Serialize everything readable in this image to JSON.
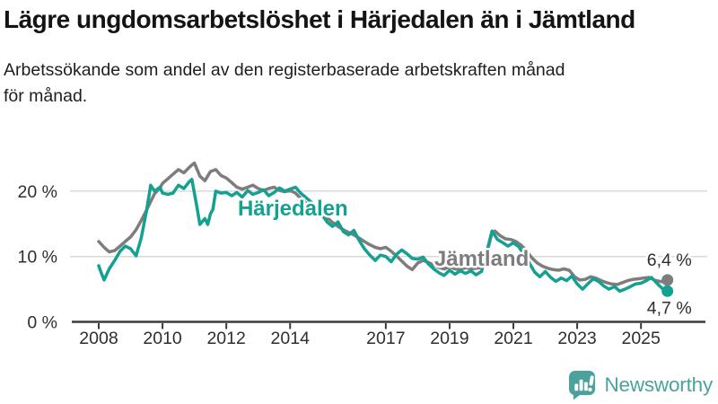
{
  "header": {
    "title": "Lägre ungdomsarbetslöshet i Härjedalen än i Jämtland",
    "subtitle": "Arbetssökande som andel av den registerbaserade arbetskraften månad för månad.",
    "subtitle_lines": [
      "Arbetssökande som andel av den registerbaserade arbetskraften månad",
      "för månad."
    ]
  },
  "footer": {
    "brand": "Newsworthy",
    "logo_icon": "bar-chart-speech-bubble"
  },
  "colors": {
    "haerjedalen": "#14A191",
    "jaemtland": "#7D7D7D",
    "grid": "#D9D9D9",
    "axis": "#3A3A3A",
    "tick_text": "#2E2E2E",
    "brand_teal": "#4BA19C",
    "background": "#FFFFFF"
  },
  "chart_data": {
    "type": "line",
    "title": "Lägre ungdomsarbetslöshet i Härjedalen än i Jämtland",
    "unit": "%",
    "grid": "horizontal",
    "legend": "inline-labels",
    "x_axis": {
      "ticks": [
        2008,
        2010,
        2012,
        2014,
        2017,
        2019,
        2021,
        2023,
        2025
      ],
      "range": [
        2007.8,
        2026.4
      ]
    },
    "y_axis": {
      "ticks": [
        {
          "value": 0,
          "label": "0 %"
        },
        {
          "value": 10,
          "label": "10 %"
        },
        {
          "value": 20,
          "label": "20 %"
        }
      ],
      "range": [
        0,
        27
      ]
    },
    "series": [
      {
        "name": "Härjedalen",
        "slug": "harjedalen",
        "color": "#14A191",
        "end_value": 4.7,
        "end_label": "4,7 %",
        "end_label_side": "below",
        "label_anchor": {
          "x": 2012.36,
          "y": 16.3
        },
        "points": [
          [
            2008.0,
            8.6
          ],
          [
            2008.08,
            7.5
          ],
          [
            2008.17,
            6.4
          ],
          [
            2008.33,
            8.1
          ],
          [
            2008.5,
            9.4
          ],
          [
            2008.67,
            10.8
          ],
          [
            2008.83,
            11.6
          ],
          [
            2009.0,
            11.2
          ],
          [
            2009.17,
            10.1
          ],
          [
            2009.33,
            12.8
          ],
          [
            2009.5,
            17.0
          ],
          [
            2009.63,
            20.9
          ],
          [
            2009.75,
            20.0
          ],
          [
            2009.92,
            20.6
          ],
          [
            2010.0,
            19.7
          ],
          [
            2010.17,
            19.5
          ],
          [
            2010.33,
            19.7
          ],
          [
            2010.5,
            20.9
          ],
          [
            2010.67,
            20.4
          ],
          [
            2010.83,
            21.4
          ],
          [
            2010.92,
            21.8
          ],
          [
            2011.08,
            17.5
          ],
          [
            2011.17,
            14.9
          ],
          [
            2011.33,
            15.8
          ],
          [
            2011.42,
            14.9
          ],
          [
            2011.5,
            16.5
          ],
          [
            2011.58,
            17.2
          ],
          [
            2011.67,
            20.0
          ],
          [
            2011.83,
            19.7
          ],
          [
            2012.0,
            19.8
          ],
          [
            2012.17,
            19.3
          ],
          [
            2012.33,
            19.8
          ],
          [
            2012.5,
            19.1
          ],
          [
            2012.67,
            20.1
          ],
          [
            2012.83,
            19.5
          ],
          [
            2013.0,
            19.8
          ],
          [
            2013.17,
            20.2
          ],
          [
            2013.33,
            19.3
          ],
          [
            2013.5,
            19.8
          ],
          [
            2013.67,
            20.5
          ],
          [
            2013.83,
            20.0
          ],
          [
            2014.0,
            20.3
          ],
          [
            2014.17,
            20.6
          ],
          [
            2014.33,
            19.7
          ],
          [
            2014.5,
            19.0
          ],
          [
            2014.67,
            18.3
          ],
          [
            2014.83,
            17.2
          ],
          [
            2015.0,
            16.4
          ],
          [
            2015.17,
            15.2
          ],
          [
            2015.33,
            14.6
          ],
          [
            2015.5,
            15.3
          ],
          [
            2015.67,
            13.8
          ],
          [
            2015.83,
            13.3
          ],
          [
            2016.0,
            14.0
          ],
          [
            2016.17,
            12.4
          ],
          [
            2016.33,
            11.2
          ],
          [
            2016.5,
            10.2
          ],
          [
            2016.67,
            9.4
          ],
          [
            2016.83,
            10.2
          ],
          [
            2017.0,
            10.0
          ],
          [
            2017.17,
            9.2
          ],
          [
            2017.33,
            10.3
          ],
          [
            2017.5,
            11.0
          ],
          [
            2017.67,
            10.4
          ],
          [
            2017.83,
            9.7
          ],
          [
            2018.0,
            9.6
          ],
          [
            2018.17,
            9.9
          ],
          [
            2018.33,
            8.9
          ],
          [
            2018.5,
            8.1
          ],
          [
            2018.67,
            7.5
          ],
          [
            2018.83,
            7.1
          ],
          [
            2019.0,
            7.9
          ],
          [
            2019.17,
            7.3
          ],
          [
            2019.33,
            7.8
          ],
          [
            2019.5,
            7.4
          ],
          [
            2019.67,
            7.8
          ],
          [
            2019.83,
            7.2
          ],
          [
            2020.0,
            7.7
          ],
          [
            2020.17,
            10.8
          ],
          [
            2020.33,
            13.9
          ],
          [
            2020.5,
            12.6
          ],
          [
            2020.67,
            12.1
          ],
          [
            2020.83,
            11.6
          ],
          [
            2021.0,
            12.1
          ],
          [
            2021.17,
            11.5
          ],
          [
            2021.33,
            10.3
          ],
          [
            2021.5,
            9.0
          ],
          [
            2021.67,
            7.6
          ],
          [
            2021.83,
            6.9
          ],
          [
            2022.0,
            7.7
          ],
          [
            2022.17,
            6.8
          ],
          [
            2022.33,
            6.2
          ],
          [
            2022.5,
            6.7
          ],
          [
            2022.67,
            6.3
          ],
          [
            2022.83,
            7.0
          ],
          [
            2023.0,
            5.8
          ],
          [
            2023.17,
            5.0
          ],
          [
            2023.33,
            5.8
          ],
          [
            2023.5,
            6.6
          ],
          [
            2023.67,
            6.2
          ],
          [
            2023.83,
            5.5
          ],
          [
            2024.0,
            5.0
          ],
          [
            2024.17,
            5.4
          ],
          [
            2024.33,
            4.7
          ],
          [
            2024.5,
            5.0
          ],
          [
            2024.67,
            5.4
          ],
          [
            2024.83,
            5.8
          ],
          [
            2025.0,
            5.9
          ],
          [
            2025.17,
            6.3
          ],
          [
            2025.33,
            6.8
          ],
          [
            2025.5,
            5.9
          ],
          [
            2025.67,
            5.1
          ],
          [
            2025.83,
            4.7
          ]
        ]
      },
      {
        "name": "Jämtland",
        "slug": "jamtland",
        "color": "#7D7D7D",
        "end_value": 6.4,
        "end_label": "6,4 %",
        "end_label_side": "above",
        "label_anchor": {
          "x": 2018.52,
          "y": 8.6
        },
        "points": [
          [
            2008.0,
            12.3
          ],
          [
            2008.17,
            11.4
          ],
          [
            2008.33,
            10.7
          ],
          [
            2008.5,
            10.9
          ],
          [
            2008.67,
            11.6
          ],
          [
            2008.83,
            12.3
          ],
          [
            2009.0,
            13.0
          ],
          [
            2009.17,
            14.1
          ],
          [
            2009.33,
            15.5
          ],
          [
            2009.5,
            17.1
          ],
          [
            2009.63,
            18.4
          ],
          [
            2009.75,
            19.6
          ],
          [
            2009.92,
            20.5
          ],
          [
            2010.0,
            21.2
          ],
          [
            2010.17,
            21.9
          ],
          [
            2010.33,
            22.6
          ],
          [
            2010.5,
            23.3
          ],
          [
            2010.67,
            22.8
          ],
          [
            2010.83,
            23.6
          ],
          [
            2010.92,
            24.0
          ],
          [
            2011.0,
            24.3
          ],
          [
            2011.17,
            22.3
          ],
          [
            2011.33,
            21.6
          ],
          [
            2011.5,
            23.0
          ],
          [
            2011.67,
            23.3
          ],
          [
            2011.83,
            22.4
          ],
          [
            2012.0,
            22.0
          ],
          [
            2012.17,
            21.3
          ],
          [
            2012.33,
            20.6
          ],
          [
            2012.5,
            20.3
          ],
          [
            2012.67,
            20.6
          ],
          [
            2012.83,
            20.9
          ],
          [
            2013.0,
            20.4
          ],
          [
            2013.17,
            20.1
          ],
          [
            2013.33,
            20.4
          ],
          [
            2013.5,
            20.6
          ],
          [
            2013.67,
            20.1
          ],
          [
            2013.83,
            19.9
          ],
          [
            2014.0,
            20.1
          ],
          [
            2014.17,
            19.7
          ],
          [
            2014.33,
            18.9
          ],
          [
            2014.5,
            18.2
          ],
          [
            2014.67,
            17.6
          ],
          [
            2014.83,
            17.0
          ],
          [
            2015.0,
            16.5
          ],
          [
            2015.17,
            15.9
          ],
          [
            2015.33,
            15.2
          ],
          [
            2015.5,
            14.6
          ],
          [
            2015.67,
            14.1
          ],
          [
            2015.83,
            13.7
          ],
          [
            2016.0,
            13.3
          ],
          [
            2016.17,
            12.8
          ],
          [
            2016.33,
            12.3
          ],
          [
            2016.5,
            11.8
          ],
          [
            2016.67,
            11.4
          ],
          [
            2016.83,
            11.2
          ],
          [
            2017.0,
            11.4
          ],
          [
            2017.17,
            10.8
          ],
          [
            2017.33,
            10.1
          ],
          [
            2017.5,
            9.3
          ],
          [
            2017.67,
            8.5
          ],
          [
            2017.83,
            8.0
          ],
          [
            2018.0,
            9.0
          ],
          [
            2018.17,
            9.4
          ],
          [
            2018.33,
            9.1
          ],
          [
            2018.5,
            8.7
          ],
          [
            2018.67,
            8.3
          ],
          [
            2018.83,
            8.1
          ],
          [
            2019.0,
            8.4
          ],
          [
            2019.17,
            8.1
          ],
          [
            2019.33,
            8.0
          ],
          [
            2019.5,
            8.3
          ],
          [
            2019.67,
            8.1
          ],
          [
            2019.83,
            8.2
          ],
          [
            2020.0,
            8.3
          ],
          [
            2020.17,
            10.6
          ],
          [
            2020.33,
            13.6
          ],
          [
            2020.42,
            13.9
          ],
          [
            2020.58,
            13.2
          ],
          [
            2020.75,
            12.7
          ],
          [
            2020.92,
            12.6
          ],
          [
            2021.08,
            12.3
          ],
          [
            2021.25,
            11.7
          ],
          [
            2021.42,
            10.8
          ],
          [
            2021.58,
            9.8
          ],
          [
            2021.75,
            9.0
          ],
          [
            2021.92,
            8.5
          ],
          [
            2022.08,
            8.2
          ],
          [
            2022.25,
            8.0
          ],
          [
            2022.42,
            7.9
          ],
          [
            2022.58,
            8.1
          ],
          [
            2022.75,
            7.9
          ],
          [
            2022.92,
            6.9
          ],
          [
            2023.08,
            6.4
          ],
          [
            2023.25,
            6.5
          ],
          [
            2023.42,
            6.9
          ],
          [
            2023.58,
            6.7
          ],
          [
            2023.75,
            6.3
          ],
          [
            2023.92,
            6.0
          ],
          [
            2024.08,
            5.8
          ],
          [
            2024.25,
            5.7
          ],
          [
            2024.42,
            6.0
          ],
          [
            2024.58,
            6.3
          ],
          [
            2024.75,
            6.5
          ],
          [
            2024.92,
            6.6
          ],
          [
            2025.08,
            6.7
          ],
          [
            2025.25,
            6.8
          ],
          [
            2025.42,
            6.4
          ],
          [
            2025.58,
            6.2
          ],
          [
            2025.75,
            6.1
          ],
          [
            2025.83,
            6.4
          ]
        ]
      }
    ]
  }
}
